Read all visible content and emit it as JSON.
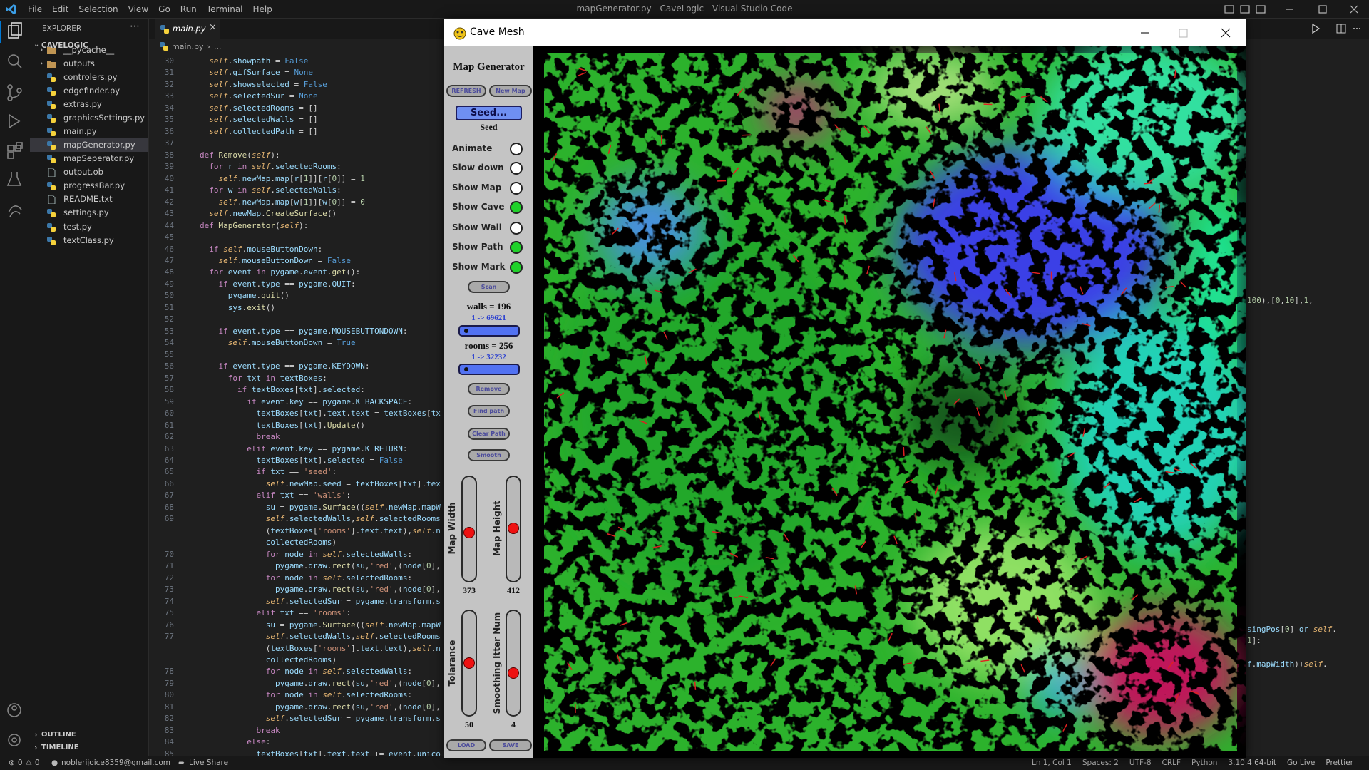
{
  "window_title": "mapGenerator.py - CaveLogic - Visual Studio Code",
  "menu": [
    "File",
    "Edit",
    "Selection",
    "View",
    "Go",
    "Run",
    "Terminal",
    "Help"
  ],
  "explorer": {
    "header": "EXPLORER",
    "project": "CAVELOGIC",
    "files": [
      {
        "name": "__pycache__",
        "folder": true
      },
      {
        "name": "outputs",
        "folder": true
      },
      {
        "name": "controlers.py"
      },
      {
        "name": "edgefinder.py"
      },
      {
        "name": "extras.py"
      },
      {
        "name": "graphicsSettings.py"
      },
      {
        "name": "main.py"
      },
      {
        "name": "mapGenerator.py",
        "selected": true
      },
      {
        "name": "mapSeperator.py"
      },
      {
        "name": "output.ob",
        "plain": true
      },
      {
        "name": "progressBar.py"
      },
      {
        "name": "README.txt",
        "plain": true
      },
      {
        "name": "settings.py"
      },
      {
        "name": "test.py"
      },
      {
        "name": "textClass.py"
      }
    ],
    "sections": [
      "OUTLINE",
      "TIMELINE"
    ]
  },
  "editor": {
    "tab": "main.py",
    "breadcrumb": [
      "main.py",
      "..."
    ],
    "lines": [
      {
        "num": 30,
        "text": "  self.showpath = False"
      },
      {
        "num": 31,
        "text": "  self.gifSurface = None"
      },
      {
        "num": 32,
        "text": "  self.showselected = False"
      },
      {
        "num": 33,
        "text": "  self.selectedSur = None"
      },
      {
        "num": 34,
        "text": "  self.selectedRooms = []"
      },
      {
        "num": 35,
        "text": "  self.selectedWalls = []"
      },
      {
        "num": 36,
        "text": "  self.collectedPath = []"
      },
      {
        "num": 37,
        "text": ""
      },
      {
        "num": 38,
        "text": "def Remove(self):"
      },
      {
        "num": 39,
        "text": "  for r in self.selectedRooms:"
      },
      {
        "num": 40,
        "text": "    self.newMap.map[r[1]][r[0]] = 1"
      },
      {
        "num": 41,
        "text": "  for w in self.selectedWalls:"
      },
      {
        "num": 42,
        "text": "    self.newMap.map[w[1]][w[0]] = 0"
      },
      {
        "num": 43,
        "text": "  self.newMap.CreateSurface()"
      },
      {
        "num": 44,
        "text": "def MapGenerator(self):"
      },
      {
        "num": 45,
        "text": ""
      },
      {
        "num": 46,
        "text": "  if self.mouseButtonDown:"
      },
      {
        "num": 47,
        "text": "    self.mouseButtonDown = False"
      },
      {
        "num": 48,
        "text": "  for event in pygame.event.get():"
      },
      {
        "num": 49,
        "text": "    if event.type == pygame.QUIT:"
      },
      {
        "num": 50,
        "text": "      pygame.quit()"
      },
      {
        "num": 51,
        "text": "      sys.exit()"
      },
      {
        "num": 52,
        "text": ""
      },
      {
        "num": 53,
        "text": "    if event.type == pygame.MOUSEBUTTONDOWN:"
      },
      {
        "num": 54,
        "text": "      self.mouseButtonDown = True"
      },
      {
        "num": 55,
        "text": ""
      },
      {
        "num": 56,
        "text": "    if event.type == pygame.KEYDOWN:"
      },
      {
        "num": 57,
        "text": "      for txt in textBoxes:"
      },
      {
        "num": 58,
        "text": "        if textBoxes[txt].selected:"
      },
      {
        "num": 59,
        "text": "          if event.key == pygame.K_BACKSPACE:"
      },
      {
        "num": 60,
        "text": "            textBoxes[txt].text.text = textBoxes[tx"
      },
      {
        "num": 61,
        "text": "            textBoxes[txt].Update()"
      },
      {
        "num": 62,
        "text": "            break"
      },
      {
        "num": 63,
        "text": "          elif event.key == pygame.K_RETURN:"
      },
      {
        "num": 64,
        "text": "            textBoxes[txt].selected = False"
      },
      {
        "num": 65,
        "text": "            if txt == 'seed':"
      },
      {
        "num": 66,
        "text": "              self.newMap.seed = textBoxes[txt].tex"
      },
      {
        "num": 67,
        "text": "            elif txt == 'walls':"
      },
      {
        "num": 68,
        "text": "              su = pygame.Surface((self.newMap.mapW"
      },
      {
        "num": 69,
        "text": "              self.selectedWalls,self.selectedRooms"
      },
      {
        "text": "              (textBoxes['rooms'].text.text),self.n"
      },
      {
        "text": "              collectedRooms)"
      },
      {
        "num": 70,
        "text": "              for node in self.selectedWalls:"
      },
      {
        "num": 71,
        "text": "                pygame.draw.rect(su,'red',(node[0],"
      },
      {
        "num": 72,
        "text": "              for node in self.selectedRooms:"
      },
      {
        "num": 73,
        "text": "                pygame.draw.rect(su,'red',(node[0],"
      },
      {
        "num": 74,
        "text": "              self.selectedSur = pygame.transform.s"
      },
      {
        "num": 75,
        "text": "            elif txt == 'rooms':"
      },
      {
        "num": 76,
        "text": "              su = pygame.Surface((self.newMap.mapW"
      },
      {
        "num": 77,
        "text": "              self.selectedWalls,self.selectedRooms"
      },
      {
        "text": "              (textBoxes['rooms'].text.text),self.n"
      },
      {
        "text": "              collectedRooms)"
      },
      {
        "num": 78,
        "text": "              for node in self.selectedWalls:"
      },
      {
        "num": 79,
        "text": "                pygame.draw.rect(su,'red',(node[0],"
      },
      {
        "num": 80,
        "text": "              for node in self.selectedRooms:"
      },
      {
        "num": 81,
        "text": "                pygame.draw.rect(su,'red',(node[0],"
      },
      {
        "num": 82,
        "text": "              self.selectedSur = pygame.transform.s"
      },
      {
        "num": 83,
        "text": "            break"
      },
      {
        "num": 84,
        "text": "          else:"
      },
      {
        "num": 85,
        "text": "            textBoxes[txt].text.text += event.unico"
      }
    ],
    "overflow": [
      "100),[0,10],1,",
      "singPos[0] or self.",
      "1]:",
      "f.mapWidth)+self."
    ]
  },
  "status": {
    "errors": 0,
    "warnings": 0,
    "account": "noblerijoice8359@gmail.com",
    "live_share": "Live Share",
    "right": [
      "Ln 1, Col 1",
      "Spaces: 2",
      "UTF-8",
      "CRLF",
      "Python",
      "3.10.4 64-bit",
      "Go Live",
      "Prettier"
    ]
  },
  "game": {
    "title": "Cave Mesh",
    "heading": "Map Generator",
    "top_buttons": [
      "REFRESH",
      "New Map"
    ],
    "seed_box": "Seed...",
    "seed_label": "Seed",
    "options": [
      {
        "label": "Animate",
        "checked": false
      },
      {
        "label": "Slow down",
        "checked": false
      },
      {
        "label": "Show Map",
        "checked": false
      },
      {
        "label": "Show Cave",
        "checked": true
      },
      {
        "label": "Show Wall",
        "checked": false
      },
      {
        "label": "Show Path",
        "checked": true
      },
      {
        "label": "Show Mark",
        "checked": true
      }
    ],
    "scan": "Scan",
    "walls": {
      "label": "walls = 196",
      "range": "1 -> 69621"
    },
    "rooms": {
      "label": "rooms = 256",
      "range": "1 -> 32232"
    },
    "actions": [
      "Remove",
      "Find path",
      "Clear Path",
      "Smooth"
    ],
    "sliders": [
      {
        "label": "Map Width",
        "value": 373
      },
      {
        "label": "Map Height",
        "value": 412
      },
      {
        "label": "Tolarance",
        "value": 50
      },
      {
        "label": "Smoothing Itter Num",
        "value": 4
      }
    ],
    "bottom_buttons": [
      "LOAD",
      "SAVE"
    ]
  }
}
